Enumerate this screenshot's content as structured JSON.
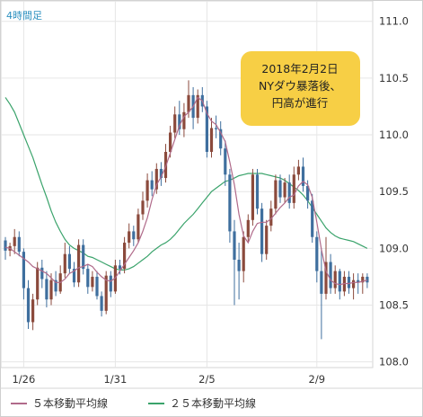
{
  "chart_data": {
    "type": "candlestick",
    "timeframe_label": "4時間足",
    "annotation": [
      "2018年2月2日",
      "NYダウ暴落後、",
      "円高が進行"
    ],
    "y_ticks": [
      "111.0",
      "110.5",
      "110.0",
      "109.5",
      "109.0",
      "108.5",
      "108.0"
    ],
    "ylim": [
      107.95,
      111.18
    ],
    "x_ticks": [
      {
        "label": "1/26",
        "index": 4
      },
      {
        "label": "1/31",
        "index": 24
      },
      {
        "label": "2/5",
        "index": 44
      },
      {
        "label": "2/9",
        "index": 68
      }
    ],
    "colors": {
      "up": "#8b4a3c",
      "down": "#3f6f9e",
      "ma5": "#b06a8a",
      "ma25": "#3aa36b",
      "annotation_bg": "#f7cf45"
    },
    "series": [
      {
        "name": "５本移動平均線",
        "values": [
          109.01,
          109.0,
          108.97,
          108.94,
          108.91,
          108.88,
          108.84,
          108.82,
          108.8,
          108.78,
          108.74,
          108.7,
          108.7,
          108.73,
          108.78,
          108.8,
          108.83,
          108.84,
          108.86,
          108.84,
          108.79,
          108.75,
          108.72,
          108.71,
          108.74,
          108.8,
          108.86,
          108.92,
          108.98,
          109.05,
          109.15,
          109.27,
          109.43,
          109.56,
          109.63,
          109.72,
          109.84,
          109.96,
          110.08,
          110.16,
          110.2,
          110.25,
          110.33,
          110.3,
          110.19,
          110.12,
          110.09,
          110.02,
          109.94,
          109.76,
          109.56,
          109.3,
          109.11,
          109.05,
          109.15,
          109.22,
          109.23,
          109.23,
          109.26,
          109.31,
          109.36,
          109.4,
          109.45,
          109.47,
          109.55,
          109.59,
          109.56,
          109.45,
          109.23,
          108.99,
          108.8,
          108.72,
          108.69,
          108.68,
          108.69,
          108.69,
          108.7,
          108.7,
          108.71,
          108.72
        ]
      },
      {
        "name": "２５本移動平均線",
        "values": [
          110.33,
          110.27,
          110.2,
          110.1,
          110.0,
          109.9,
          109.8,
          109.68,
          109.56,
          109.45,
          109.33,
          109.23,
          109.15,
          109.08,
          109.03,
          109.0,
          108.98,
          108.96,
          108.93,
          108.92,
          108.9,
          108.88,
          108.86,
          108.84,
          108.82,
          108.81,
          108.81,
          108.82,
          108.84,
          108.87,
          108.9,
          108.93,
          108.97,
          109.0,
          109.03,
          109.05,
          109.08,
          109.12,
          109.17,
          109.22,
          109.26,
          109.3,
          109.35,
          109.4,
          109.45,
          109.5,
          109.53,
          109.56,
          109.59,
          109.6,
          109.62,
          109.64,
          109.65,
          109.66,
          109.66,
          109.66,
          109.66,
          109.65,
          109.64,
          109.63,
          109.62,
          109.6,
          109.57,
          109.54,
          109.51,
          109.47,
          109.42,
          109.36,
          109.3,
          109.24,
          109.18,
          109.14,
          109.11,
          109.09,
          109.08,
          109.07,
          109.06,
          109.04,
          109.02,
          109.0
        ]
      }
    ],
    "candles": [
      [
        109.07,
        108.98,
        109.1,
        108.9
      ],
      [
        108.98,
        109.02,
        109.05,
        108.93
      ],
      [
        109.02,
        109.1,
        109.17,
        108.95
      ],
      [
        109.1,
        108.97,
        109.15,
        108.93
      ],
      [
        108.97,
        108.65,
        109.0,
        108.55
      ],
      [
        108.65,
        108.35,
        108.72,
        108.29
      ],
      [
        108.35,
        108.55,
        108.6,
        108.28
      ],
      [
        108.55,
        108.83,
        108.88,
        108.5
      ],
      [
        108.83,
        108.73,
        108.9,
        108.65
      ],
      [
        108.73,
        108.55,
        108.8,
        108.48
      ],
      [
        108.55,
        108.72,
        108.78,
        108.5
      ],
      [
        108.72,
        108.62,
        108.8,
        108.58
      ],
      [
        108.62,
        108.78,
        108.85,
        108.6
      ],
      [
        108.78,
        108.95,
        109.05,
        108.74
      ],
      [
        108.95,
        108.82,
        109.02,
        108.78
      ],
      [
        108.82,
        108.7,
        108.88,
        108.66
      ],
      [
        108.7,
        109.03,
        109.08,
        108.66
      ],
      [
        109.03,
        108.82,
        109.08,
        108.77
      ],
      [
        108.82,
        108.66,
        108.86,
        108.6
      ],
      [
        108.66,
        108.75,
        108.8,
        108.62
      ],
      [
        108.75,
        108.58,
        108.8,
        108.55
      ],
      [
        108.58,
        108.45,
        108.62,
        108.4
      ],
      [
        108.45,
        108.76,
        108.8,
        108.42
      ],
      [
        108.76,
        108.62,
        108.8,
        108.57
      ],
      [
        108.62,
        108.85,
        108.9,
        108.6
      ],
      [
        108.85,
        108.82,
        108.9,
        108.77
      ],
      [
        108.82,
        109.05,
        109.1,
        108.78
      ],
      [
        109.05,
        109.15,
        109.22,
        109.0
      ],
      [
        109.15,
        109.08,
        109.2,
        109.02
      ],
      [
        109.08,
        109.3,
        109.35,
        109.05
      ],
      [
        109.3,
        109.42,
        109.5,
        109.25
      ],
      [
        109.42,
        109.6,
        109.66,
        109.36
      ],
      [
        109.6,
        109.52,
        109.68,
        109.46
      ],
      [
        109.52,
        109.7,
        109.75,
        109.48
      ],
      [
        109.7,
        109.62,
        109.76,
        109.55
      ],
      [
        109.62,
        109.85,
        109.92,
        109.58
      ],
      [
        109.85,
        110.02,
        110.08,
        109.8
      ],
      [
        110.02,
        110.18,
        110.25,
        109.97
      ],
      [
        110.18,
        110.05,
        110.3,
        110.0
      ],
      [
        110.05,
        110.2,
        110.28,
        109.98
      ],
      [
        110.2,
        110.35,
        110.48,
        110.15
      ],
      [
        110.35,
        110.15,
        110.42,
        110.05
      ],
      [
        110.15,
        110.35,
        110.4,
        110.1
      ],
      [
        110.35,
        110.25,
        110.42,
        110.2
      ],
      [
        110.25,
        109.85,
        110.3,
        109.8
      ],
      [
        109.85,
        110.06,
        110.15,
        109.8
      ],
      [
        110.06,
        110.05,
        110.17,
        109.97
      ],
      [
        110.05,
        109.88,
        110.12,
        109.82
      ],
      [
        109.88,
        109.65,
        109.95,
        109.55
      ],
      [
        109.65,
        109.15,
        109.7,
        109.05
      ],
      [
        109.15,
        108.9,
        109.25,
        108.5
      ],
      [
        108.9,
        108.8,
        109.05,
        108.55
      ],
      [
        108.8,
        109.1,
        109.15,
        108.7
      ],
      [
        109.1,
        109.25,
        109.3,
        109.05
      ],
      [
        109.25,
        109.65,
        109.7,
        109.2
      ],
      [
        109.65,
        109.35,
        109.7,
        109.3
      ],
      [
        109.35,
        108.95,
        109.4,
        108.88
      ],
      [
        108.95,
        109.2,
        109.25,
        108.9
      ],
      [
        109.2,
        109.35,
        109.42,
        109.15
      ],
      [
        109.35,
        109.6,
        109.65,
        109.3
      ],
      [
        109.6,
        109.45,
        109.65,
        109.4
      ],
      [
        109.45,
        109.58,
        109.62,
        109.4
      ],
      [
        109.58,
        109.4,
        109.65,
        109.35
      ],
      [
        109.4,
        109.65,
        109.72,
        109.35
      ],
      [
        109.65,
        109.72,
        109.78,
        109.6
      ],
      [
        109.72,
        109.55,
        109.8,
        109.5
      ],
      [
        109.55,
        109.42,
        109.6,
        109.35
      ],
      [
        109.42,
        109.1,
        109.48,
        109.05
      ],
      [
        109.1,
        108.8,
        109.15,
        108.7
      ],
      [
        108.8,
        108.6,
        109.0,
        108.2
      ],
      [
        108.6,
        108.88,
        109.1,
        108.55
      ],
      [
        108.88,
        108.65,
        108.95,
        108.6
      ],
      [
        108.65,
        108.8,
        108.85,
        108.6
      ],
      [
        108.8,
        108.62,
        108.82,
        108.55
      ],
      [
        108.62,
        108.75,
        108.8,
        108.58
      ],
      [
        108.75,
        108.65,
        108.8,
        108.6
      ],
      [
        108.65,
        108.72,
        108.78,
        108.55
      ],
      [
        108.72,
        108.7,
        108.78,
        108.6
      ],
      [
        108.7,
        108.75,
        108.78,
        108.6
      ],
      [
        108.75,
        108.7,
        108.78,
        108.65
      ]
    ]
  },
  "legend": {
    "ma5": "５本移動平均線",
    "ma25": "２５本移動平均線"
  }
}
